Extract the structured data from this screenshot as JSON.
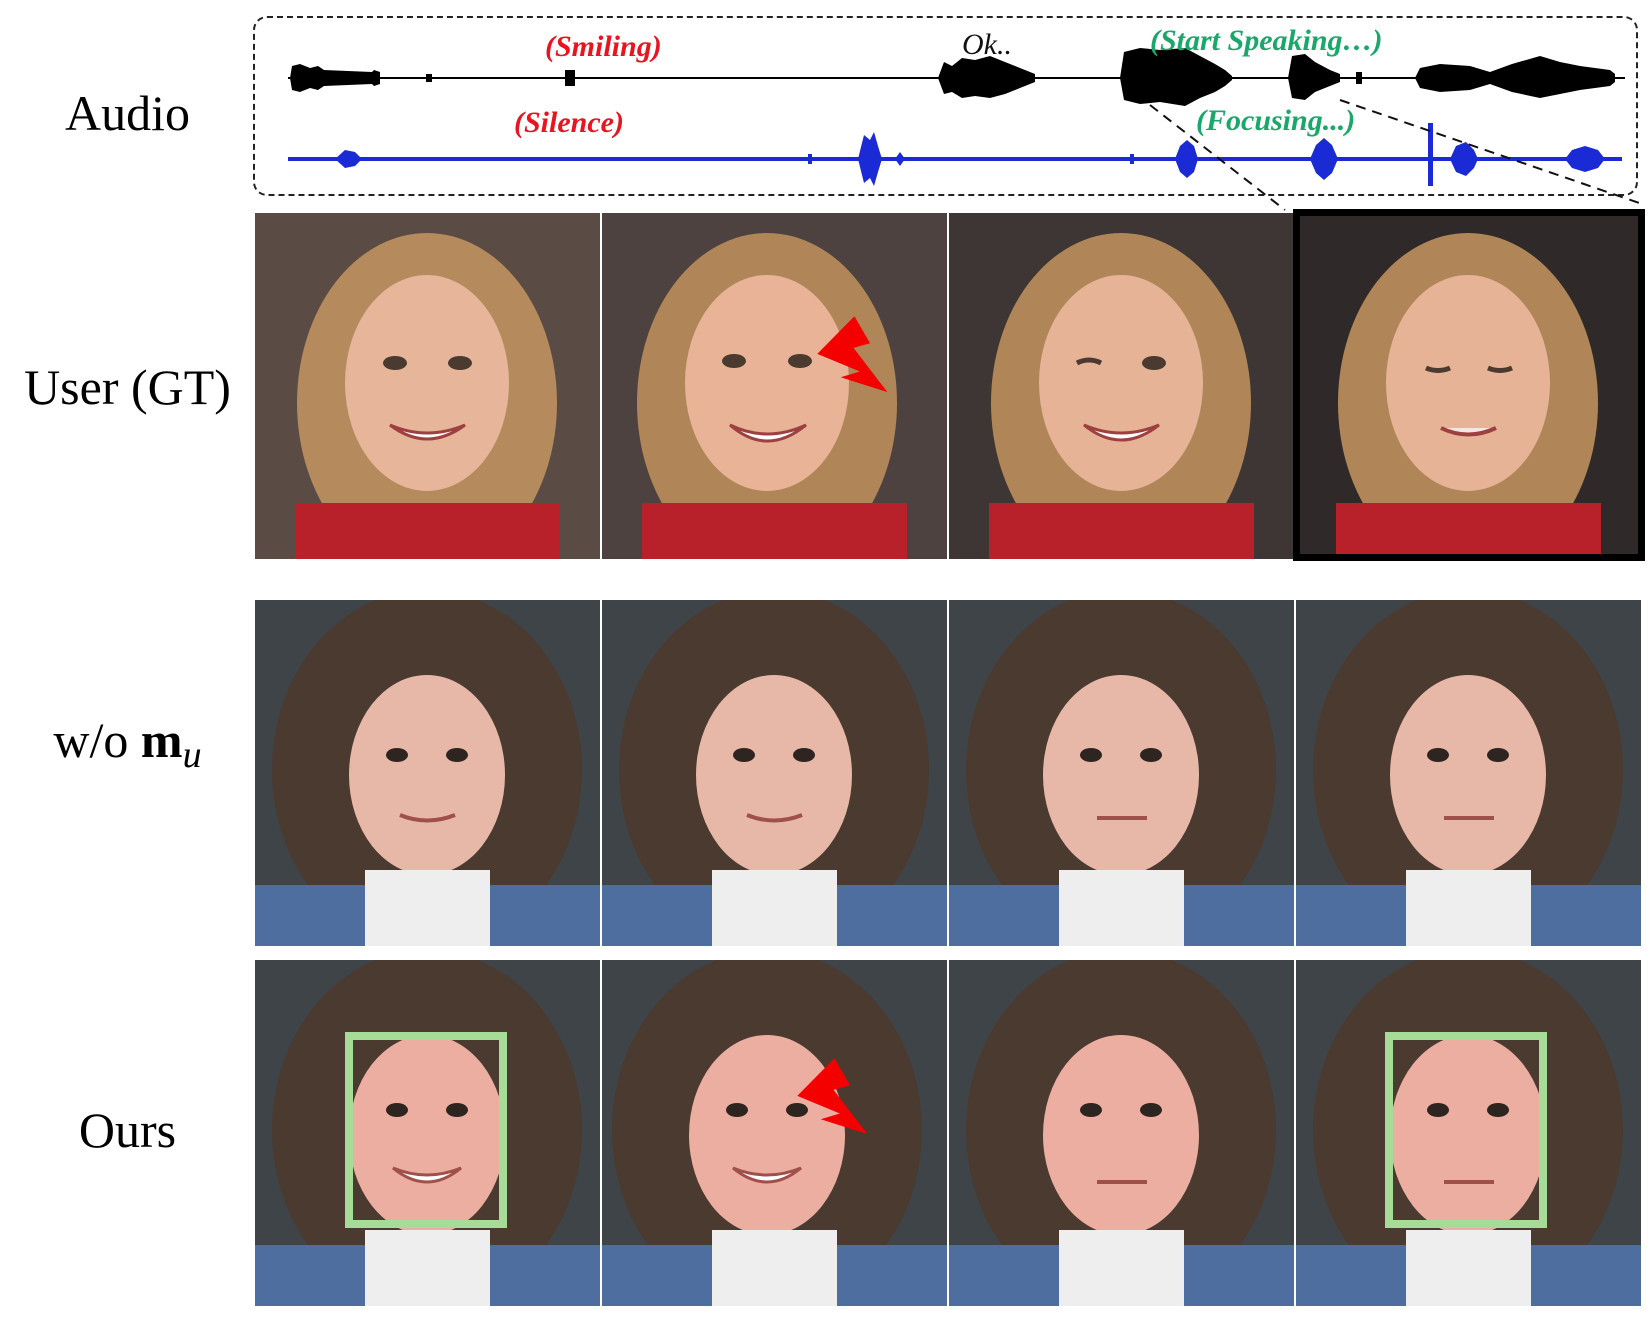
{
  "rows": {
    "audio": "Audio",
    "user_gt": "User (GT)",
    "wo_prefix": "w/o ",
    "wo_bold": "m",
    "wo_sub": "u",
    "ours": "Ours"
  },
  "annotations": {
    "smiling": "(Smiling)",
    "ok": "Ok..",
    "start_speaking": "(Start Speaking…)",
    "silence": "(Silence)",
    "focusing": "(Focusing...)"
  },
  "colors": {
    "red_text": "#e8141e",
    "green_text": "#1aa86a",
    "black_wave": "#000000",
    "blue_wave": "#1a2bd6",
    "highlight_box": "#a6dc98",
    "arrow": "#f40000"
  }
}
